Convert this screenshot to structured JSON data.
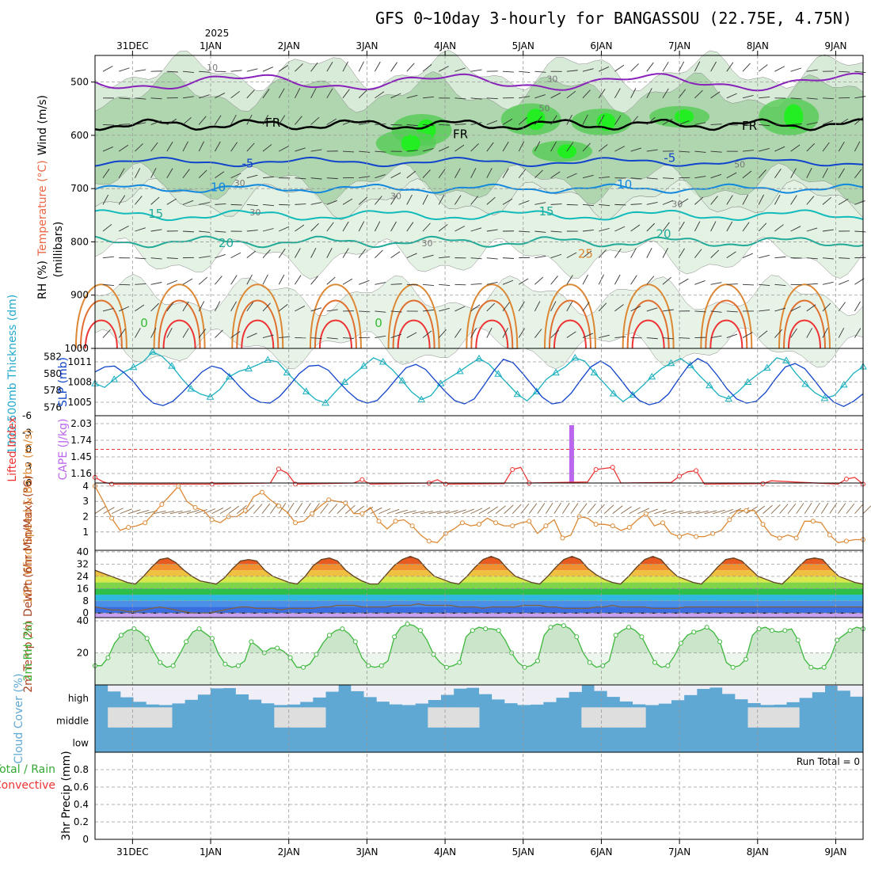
{
  "chart_data": {
    "type": "meteogram",
    "title": "GFS 0~10day 3-hourly for BANGASSOU (22.75E, 4.75N)",
    "year_label": "2025",
    "dates": [
      "31DEC",
      "1JAN",
      "2JAN",
      "3JAN",
      "4JAN",
      "5JAN",
      "6JAN",
      "7JAN",
      "8JAN",
      "9JAN"
    ],
    "colors": {
      "rh_green": "#3cb83c",
      "bright_green": "#22ee22",
      "temp_red": "#ee3333",
      "temp_orange": "#dd8833",
      "temp_teal": "#22aa99",
      "wind_blue": "#1144cc",
      "purple": "#8822bb",
      "cape": "#bb66ee",
      "cloud": "#5fa8d3",
      "precip": "#33aa33"
    },
    "panels": [
      {
        "id": "upper_air",
        "ylabel_parts": [
          "RH (%)",
          "Temperature (°C)",
          "Wind (m/s)"
        ],
        "ylabel_unit": "(millibars)",
        "y_ticks": [
          500,
          600,
          700,
          800,
          900,
          1000
        ],
        "temp_contour_labels": [
          "FR",
          "FR",
          "FR",
          "-5",
          "-5",
          "10",
          "10",
          "15",
          "15",
          "20",
          "20",
          "25",
          "0",
          "0"
        ],
        "rh_contour_labels": [
          "10",
          "30",
          "30",
          "30",
          "50",
          "50",
          "30",
          "30",
          "30"
        ]
      },
      {
        "id": "slp_thickness",
        "ylabel_left": "1000-500mb Thickness (dm)",
        "ylabel_right": "SLP (mb)",
        "left_ticks": [
          576,
          578,
          580,
          582
        ],
        "right_ticks": [
          1005,
          1008,
          1011
        ],
        "slp": [
          1007.8,
          1007.2,
          1008.4,
          1009.5,
          1010.2,
          1011.0,
          1012.5,
          1011.8,
          1010.4,
          1008.6,
          1007.0,
          1006.2,
          1005.8,
          1006.9,
          1008.8,
          1009.6,
          1010.0,
          1010.6,
          1011.3,
          1011.0,
          1009.4,
          1008.0,
          1006.6,
          1005.4,
          1004.9,
          1006.5,
          1008.0,
          1009.2,
          1010.4,
          1011.6,
          1011.0,
          1009.8,
          1008.2,
          1006.5,
          1005.4,
          1006.0,
          1007.8,
          1008.7,
          1009.6,
          1010.6,
          1011.5,
          1010.7,
          1009.2,
          1007.7,
          1006.2,
          1005.2,
          1006.6,
          1008.4,
          1009.4,
          1010.3,
          1011.6,
          1011.1,
          1009.4,
          1007.9,
          1006.3,
          1005.1,
          1006.1,
          1007.4,
          1008.8,
          1010.0,
          1010.8,
          1011.5,
          1010.5,
          1008.9,
          1007.5,
          1006.0,
          1005.5,
          1006.6,
          1008.0,
          1009.1,
          1010.1,
          1011.6,
          1011.2,
          1009.3,
          1007.7,
          1006.4,
          1005.6,
          1006.0,
          1007.6,
          1009.3,
          1010.3
        ],
        "thickness": [
          580.2,
          580.8,
          580.9,
          580.1,
          579.0,
          577.5,
          576.5,
          576.2,
          576.7,
          577.8,
          579.0,
          580.2,
          580.9,
          580.6,
          579.6,
          578.3,
          577.2,
          576.6,
          576.5,
          577.3,
          578.6,
          580.0,
          580.9,
          581.0,
          580.4,
          579.1,
          577.9,
          576.9,
          576.5,
          576.8,
          578.0,
          579.4,
          580.7,
          581.1,
          580.5,
          579.2,
          577.9,
          576.8,
          576.4,
          577.0,
          578.6,
          580.3,
          581.7,
          581.3,
          580.0,
          578.6,
          577.2,
          576.4,
          576.6,
          577.7,
          579.3,
          580.8,
          581.5,
          580.8,
          579.4,
          577.9,
          576.8,
          576.3,
          576.6,
          577.6,
          579.3,
          580.9,
          581.8,
          581.2,
          579.8,
          578.2,
          577.0,
          576.5,
          576.7,
          577.8,
          579.4,
          580.8,
          581.2,
          580.6,
          579.2,
          577.7,
          576.6,
          576.1,
          576.7,
          577.6
        ]
      },
      {
        "id": "li_cape",
        "ylabel_left": "Lifted Index",
        "ylabel_right": "CAPE (J/kg)",
        "left_ticks": [
          "-6",
          "-3",
          "0",
          "3",
          "6"
        ],
        "right_ticks": [
          "1.16",
          "1.45",
          "1.74",
          "2.03"
        ],
        "cape_bar_label": "CAPE spike near 5JAN 15Z",
        "li": [
          5.0,
          5.8,
          6.2,
          null,
          null,
          null,
          null,
          null,
          null,
          null,
          null,
          null,
          null,
          null,
          6.2,
          null,
          null,
          null,
          null,
          null,
          null,
          6.0,
          3.5,
          4.2,
          6.2,
          null,
          null,
          null,
          null,
          null,
          null,
          6.0,
          5.4,
          6.2,
          null,
          null,
          null,
          null,
          null,
          null,
          6.0,
          5.4,
          6.2,
          null,
          null,
          null,
          null,
          null,
          null,
          6.1,
          3.6,
          3.2,
          6.0,
          null,
          null,
          null,
          null,
          null,
          null,
          5.8,
          3.6,
          3.4,
          3.2,
          6.0,
          null,
          null,
          null,
          null,
          null,
          5.9,
          4.8,
          4.0,
          3.8,
          6.2,
          null,
          null,
          null,
          null,
          null,
          null,
          6.1,
          5.6,
          null,
          null,
          null,
          null,
          null,
          null,
          null,
          6.2,
          5.3,
          5.0,
          6.2
        ]
      },
      {
        "id": "wind10m",
        "ylabel": "10m Wind Speed & Barbs (m/s)",
        "y_ticks": [
          1,
          2,
          3,
          4
        ],
        "speed": [
          4.0,
          3.0,
          1.9,
          1.1,
          1.3,
          1.4,
          1.6,
          2.2,
          2.8,
          3.4,
          4.0,
          3.0,
          2.6,
          2.4,
          1.8,
          1.6,
          2.0,
          2.0,
          2.4,
          3.3,
          3.6,
          3.1,
          2.7,
          2.3,
          1.6,
          1.7,
          2.2,
          2.7,
          3.1,
          3.0,
          2.9,
          2.2,
          2.2,
          2.6,
          1.7,
          1.2,
          1.7,
          1.8,
          1.4,
          0.8,
          0.4,
          0.3,
          0.9,
          1.2,
          1.6,
          1.4,
          1.5,
          1.9,
          1.6,
          1.4,
          1.4,
          1.6,
          1.7,
          0.9,
          1.4,
          1.8,
          0.6,
          0.8,
          2.0,
          1.9,
          1.5,
          1.5,
          1.4,
          1.1,
          1.3,
          1.8,
          2.2,
          1.4,
          1.6,
          0.9,
          0.7,
          0.9,
          0.7,
          0.7,
          0.9,
          1.1,
          1.8,
          2.4,
          2.4,
          2.4,
          1.5,
          0.8,
          0.6,
          0.8,
          0.6,
          1.7,
          1.7,
          1.6,
          0.8,
          0.3,
          0.4,
          0.5,
          0.5
        ]
      },
      {
        "id": "temp2m",
        "ylabel": "2m Temp 2m DewPt (6hr Min/Max) (°C)",
        "y_ticks": [
          0,
          8,
          16,
          24,
          32,
          40
        ],
        "temp": [
          28,
          26,
          24,
          22,
          20,
          19,
          24,
          30,
          35,
          36,
          33,
          28,
          24,
          21,
          20,
          19,
          23,
          29,
          34,
          35,
          34,
          28,
          24,
          22,
          20,
          19,
          24,
          31,
          35,
          36,
          34,
          28,
          24,
          21,
          19,
          19,
          25,
          31,
          35,
          37,
          35,
          29,
          24,
          22,
          20,
          19,
          24,
          30,
          35,
          37,
          35,
          29,
          24,
          22,
          20,
          19,
          24,
          30,
          35,
          37,
          35,
          29,
          25,
          22,
          20,
          19,
          24,
          30,
          35,
          37,
          35,
          29,
          24,
          22,
          20,
          19,
          24,
          30,
          35,
          36,
          34,
          29,
          24,
          22,
          20,
          19,
          24,
          30,
          35,
          36,
          35,
          29,
          24,
          22,
          20,
          19
        ],
        "dewpt": [
          4,
          3,
          2,
          2,
          1,
          1,
          2,
          3,
          4,
          3,
          2,
          1,
          0,
          0,
          0,
          1,
          2,
          3,
          4,
          4,
          3,
          3,
          3,
          2,
          3,
          3,
          3,
          3,
          4,
          4,
          5,
          5,
          5,
          4,
          4,
          4,
          4,
          5,
          5,
          5,
          6,
          5,
          5,
          5,
          5,
          4,
          4,
          4,
          3,
          4,
          4,
          4,
          4,
          5,
          5,
          5,
          4,
          4,
          3,
          3,
          3,
          3,
          4,
          4,
          5,
          4,
          4,
          4,
          4,
          3,
          3,
          3,
          3,
          4,
          4,
          4,
          4,
          4,
          4,
          4,
          4,
          4,
          4,
          4,
          4,
          4,
          4,
          4,
          4,
          4,
          4,
          4,
          4,
          4,
          4,
          4
        ]
      },
      {
        "id": "rh2m",
        "ylabel": "2m RH (%)",
        "y_ticks": [
          20,
          40
        ],
        "rh": [
          12,
          12,
          17,
          26,
          31,
          34,
          35,
          33,
          29,
          21,
          14,
          11,
          12,
          19,
          27,
          33,
          35,
          32,
          29,
          19,
          13,
          11,
          12,
          15,
          27,
          24,
          20,
          23,
          23,
          21,
          17,
          11,
          11,
          13,
          19,
          26,
          31,
          34,
          35,
          32,
          27,
          17,
          12,
          11,
          12,
          15,
          30,
          36,
          38,
          37,
          34,
          28,
          19,
          14,
          11,
          12,
          14,
          30,
          34,
          36,
          35,
          35,
          34,
          28,
          20,
          14,
          11,
          12,
          15,
          31,
          36,
          38,
          37,
          35,
          30,
          20,
          14,
          11,
          12,
          15,
          31,
          34,
          36,
          34,
          30,
          22,
          14,
          11,
          12,
          18,
          26,
          31,
          33,
          34,
          36,
          33,
          27,
          14,
          11,
          12,
          16,
          31,
          35,
          36,
          34,
          33,
          34,
          35,
          28,
          16,
          11,
          10,
          11,
          17,
          28,
          31,
          34,
          36,
          35
        ],
        "_note": "values truncated/repeated for plotting"
      },
      {
        "id": "cloud",
        "ylabel": "Cloud Cover (%)",
        "levels": [
          "high",
          "middle",
          "low"
        ]
      },
      {
        "id": "precip",
        "ylabel_left_parts": [
          "Total / Rain",
          "Convective"
        ],
        "ylabel": "3hr Precip (mm)",
        "y_ticks": [
          "0",
          "0.2",
          "0.4",
          "0.6",
          "0.8"
        ],
        "run_total": "Run Total = 0"
      }
    ]
  }
}
